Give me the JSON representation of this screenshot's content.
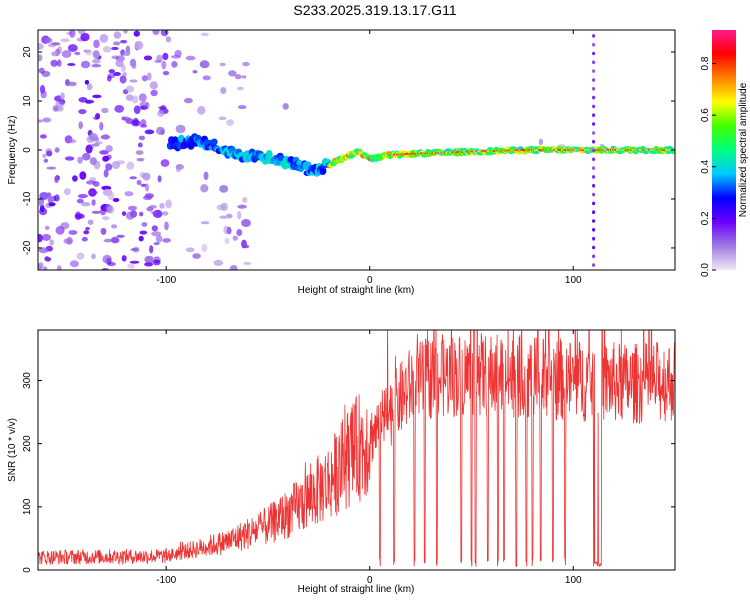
{
  "figure_title": "S233.2025.319.13.17.G11",
  "chart_data": [
    {
      "type": "heatmap",
      "name": "spectrogram",
      "title": "S233.2025.319.13.17.G11",
      "xlabel": "Height of straight line (km)",
      "ylabel": "Frequency (Hz)",
      "xlim": [
        -163,
        150
      ],
      "ylim": [
        -24.5,
        24.5
      ],
      "xticks": [
        -100,
        0,
        100
      ],
      "yticks": [
        -20,
        -10,
        0,
        10,
        20
      ],
      "ridge": [
        {
          "x": -95,
          "y": 1.5
        },
        {
          "x": -85,
          "y": 2.0
        },
        {
          "x": -75,
          "y": 0.5
        },
        {
          "x": -65,
          "y": -1.0
        },
        {
          "x": -55,
          "y": -1.5
        },
        {
          "x": -45,
          "y": -2.0
        },
        {
          "x": -35,
          "y": -3.0
        },
        {
          "x": -28,
          "y": -4.2
        },
        {
          "x": -22,
          "y": -3.5
        },
        {
          "x": -15,
          "y": -2.0
        },
        {
          "x": -10,
          "y": -1.0
        },
        {
          "x": -5,
          "y": -0.3
        },
        {
          "x": 0,
          "y": -1.8
        },
        {
          "x": 5,
          "y": -1.5
        },
        {
          "x": 10,
          "y": -1.0
        },
        {
          "x": 20,
          "y": -0.8
        },
        {
          "x": 40,
          "y": -0.5
        },
        {
          "x": 60,
          "y": -0.2
        },
        {
          "x": 80,
          "y": 0.0
        },
        {
          "x": 100,
          "y": 0.0
        },
        {
          "x": 110,
          "y": 0.0
        },
        {
          "x": 130,
          "y": 0.0
        },
        {
          "x": 150,
          "y": 0.0
        }
      ],
      "vertical_line_x": 110,
      "colorbar": {
        "label": "Normalized spectral amplitude",
        "range": [
          0.0,
          0.93
        ],
        "ticks": [
          "0.0",
          "0.2",
          "0.4",
          "0.6",
          "0.8"
        ],
        "colormap": [
          "#f0e6f8",
          "#a07be0",
          "#6a00ff",
          "#0000ff",
          "#00c8ff",
          "#00ff80",
          "#40ff00",
          "#ffff00",
          "#ff8000",
          "#ff0000",
          "#ff1a8c"
        ]
      }
    },
    {
      "type": "line",
      "name": "snr",
      "xlabel": "Height of straight line (km)",
      "ylabel": "SNR (10 * v/v)",
      "xlim": [
        -163,
        150
      ],
      "ylim": [
        0,
        380
      ],
      "xticks": [
        -100,
        0,
        100
      ],
      "yticks": [
        0,
        100,
        200,
        300
      ],
      "color": "#ee3333",
      "baseline_profile": [
        {
          "x": -163,
          "y": 20
        },
        {
          "x": -100,
          "y": 22
        },
        {
          "x": -90,
          "y": 30
        },
        {
          "x": -70,
          "y": 45
        },
        {
          "x": -50,
          "y": 70
        },
        {
          "x": -35,
          "y": 100
        },
        {
          "x": -20,
          "y": 140
        },
        {
          "x": -10,
          "y": 180
        },
        {
          "x": 0,
          "y": 210
        },
        {
          "x": 10,
          "y": 250
        },
        {
          "x": 20,
          "y": 290
        },
        {
          "x": 30,
          "y": 305
        },
        {
          "x": 50,
          "y": 310
        },
        {
          "x": 80,
          "y": 305
        },
        {
          "x": 100,
          "y": 300
        },
        {
          "x": 130,
          "y": 295
        },
        {
          "x": 150,
          "y": 300
        }
      ],
      "dropouts": [
        5,
        12,
        22,
        27,
        33,
        45,
        50,
        52,
        58,
        63,
        66,
        72,
        77,
        80,
        84,
        90,
        96
      ],
      "dropout_band": [
        110,
        114
      ]
    }
  ]
}
